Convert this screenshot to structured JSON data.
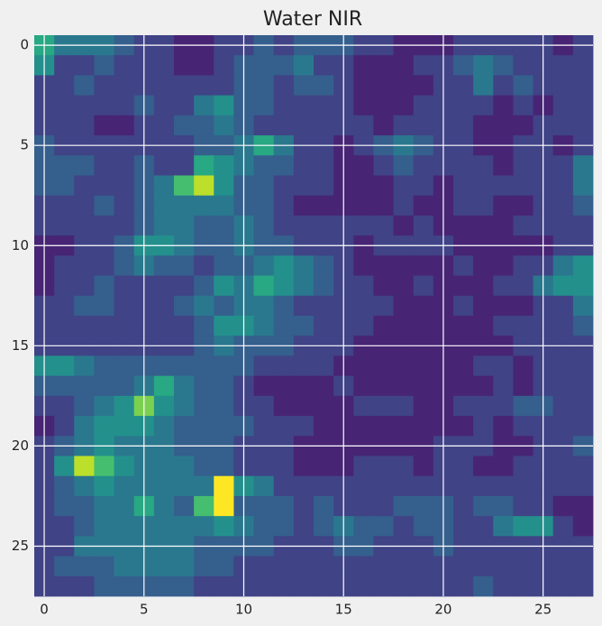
{
  "chart_data": {
    "type": "heatmap",
    "title": "Water NIR",
    "colormap": "viridis",
    "clim": [
      0,
      10
    ],
    "grid": true,
    "xlim": [
      -0.5,
      27.5
    ],
    "ylim": [
      27.5,
      -0.5
    ],
    "xticks": [
      0,
      5,
      10,
      15,
      20,
      25
    ],
    "yticks": [
      0,
      5,
      10,
      15,
      20,
      25
    ],
    "values": [
      [
        6,
        4,
        4,
        4,
        3,
        2,
        2,
        1,
        1,
        2,
        2,
        3,
        2,
        3,
        3,
        3,
        2,
        2,
        1,
        1,
        1,
        2,
        2,
        2,
        2,
        2,
        1,
        2
      ],
      [
        5,
        2,
        2,
        3,
        2,
        2,
        2,
        1,
        1,
        2,
        3,
        3,
        3,
        4,
        2,
        2,
        1,
        1,
        1,
        2,
        2,
        3,
        4,
        3,
        2,
        2,
        2,
        2
      ],
      [
        2,
        2,
        3,
        2,
        2,
        2,
        2,
        2,
        2,
        2,
        3,
        3,
        2,
        3,
        3,
        2,
        1,
        1,
        1,
        1,
        2,
        2,
        4,
        2,
        3,
        2,
        2,
        2
      ],
      [
        2,
        2,
        2,
        2,
        2,
        3,
        2,
        2,
        4,
        5,
        3,
        3,
        2,
        2,
        2,
        2,
        1,
        1,
        1,
        2,
        2,
        2,
        2,
        1,
        2,
        1,
        2,
        2
      ],
      [
        2,
        2,
        2,
        1,
        1,
        2,
        2,
        3,
        3,
        4,
        3,
        2,
        2,
        2,
        2,
        2,
        2,
        1,
        2,
        2,
        2,
        2,
        1,
        1,
        1,
        2,
        2,
        2
      ],
      [
        3,
        2,
        2,
        2,
        2,
        2,
        2,
        2,
        3,
        3,
        4,
        6,
        4,
        2,
        2,
        1,
        2,
        3,
        4,
        3,
        2,
        2,
        1,
        1,
        2,
        2,
        1,
        2
      ],
      [
        3,
        3,
        3,
        2,
        2,
        3,
        2,
        2,
        6,
        5,
        4,
        3,
        3,
        2,
        2,
        1,
        1,
        2,
        3,
        2,
        2,
        2,
        2,
        1,
        2,
        2,
        2,
        4
      ],
      [
        3,
        3,
        2,
        2,
        2,
        3,
        4,
        7,
        9,
        5,
        3,
        3,
        2,
        2,
        2,
        1,
        1,
        1,
        2,
        2,
        1,
        2,
        2,
        2,
        2,
        2,
        2,
        4
      ],
      [
        2,
        2,
        2,
        3,
        2,
        3,
        4,
        4,
        4,
        4,
        3,
        3,
        2,
        1,
        1,
        1,
        1,
        1,
        2,
        1,
        1,
        2,
        2,
        1,
        1,
        2,
        2,
        3
      ],
      [
        2,
        2,
        2,
        2,
        2,
        3,
        4,
        4,
        3,
        3,
        4,
        3,
        2,
        2,
        2,
        2,
        2,
        2,
        1,
        2,
        1,
        1,
        1,
        1,
        2,
        2,
        2,
        2
      ],
      [
        1,
        1,
        2,
        2,
        3,
        5,
        5,
        4,
        3,
        3,
        4,
        3,
        3,
        2,
        2,
        2,
        1,
        2,
        2,
        2,
        2,
        1,
        1,
        1,
        1,
        1,
        2,
        2
      ],
      [
        1,
        2,
        2,
        2,
        3,
        4,
        3,
        3,
        2,
        3,
        3,
        4,
        5,
        4,
        3,
        2,
        1,
        1,
        1,
        1,
        1,
        2,
        1,
        1,
        2,
        2,
        4,
        5
      ],
      [
        1,
        2,
        2,
        3,
        2,
        2,
        2,
        2,
        3,
        5,
        4,
        6,
        5,
        4,
        3,
        2,
        2,
        1,
        1,
        2,
        1,
        1,
        1,
        2,
        2,
        4,
        5,
        5
      ],
      [
        2,
        2,
        3,
        3,
        2,
        2,
        2,
        3,
        4,
        3,
        4,
        4,
        3,
        2,
        2,
        2,
        2,
        2,
        1,
        1,
        1,
        2,
        1,
        1,
        1,
        2,
        2,
        4
      ],
      [
        2,
        2,
        2,
        2,
        2,
        2,
        2,
        2,
        3,
        5,
        5,
        4,
        3,
        3,
        2,
        2,
        2,
        1,
        1,
        1,
        1,
        1,
        1,
        2,
        2,
        2,
        2,
        3
      ],
      [
        2,
        2,
        2,
        2,
        2,
        2,
        2,
        2,
        3,
        4,
        3,
        3,
        3,
        2,
        2,
        2,
        1,
        1,
        1,
        1,
        1,
        1,
        1,
        1,
        2,
        2,
        2,
        2
      ],
      [
        5,
        5,
        4,
        3,
        3,
        3,
        3,
        3,
        3,
        3,
        3,
        2,
        2,
        2,
        2,
        1,
        1,
        1,
        1,
        1,
        1,
        1,
        2,
        2,
        1,
        2,
        2,
        2
      ],
      [
        3,
        3,
        3,
        3,
        3,
        4,
        6,
        4,
        3,
        3,
        2,
        1,
        1,
        1,
        1,
        2,
        1,
        1,
        1,
        1,
        1,
        1,
        1,
        2,
        1,
        2,
        2,
        2
      ],
      [
        2,
        2,
        3,
        4,
        5,
        8,
        5,
        4,
        3,
        3,
        2,
        2,
        1,
        1,
        1,
        1,
        2,
        2,
        2,
        1,
        1,
        2,
        2,
        2,
        3,
        3,
        2,
        2
      ],
      [
        1,
        2,
        4,
        5,
        5,
        5,
        4,
        3,
        3,
        3,
        3,
        2,
        2,
        2,
        1,
        1,
        1,
        1,
        1,
        1,
        1,
        1,
        2,
        1,
        2,
        2,
        2,
        2
      ],
      [
        2,
        3,
        4,
        5,
        4,
        4,
        4,
        3,
        3,
        3,
        2,
        2,
        2,
        1,
        1,
        1,
        1,
        1,
        1,
        1,
        2,
        2,
        2,
        1,
        1,
        2,
        2,
        3
      ],
      [
        2,
        5,
        9,
        7,
        5,
        4,
        4,
        4,
        3,
        3,
        2,
        2,
        2,
        1,
        1,
        1,
        2,
        2,
        2,
        1,
        2,
        2,
        1,
        1,
        2,
        2,
        2,
        2
      ],
      [
        2,
        3,
        4,
        5,
        4,
        4,
        4,
        4,
        4,
        10,
        5,
        4,
        2,
        2,
        2,
        2,
        2,
        2,
        2,
        2,
        2,
        2,
        2,
        2,
        2,
        2,
        2,
        2
      ],
      [
        2,
        3,
        3,
        4,
        4,
        6,
        4,
        3,
        7,
        10,
        3,
        3,
        3,
        2,
        3,
        2,
        2,
        2,
        3,
        3,
        3,
        2,
        3,
        3,
        2,
        2,
        1,
        1
      ],
      [
        2,
        2,
        3,
        4,
        4,
        4,
        4,
        4,
        4,
        5,
        4,
        3,
        3,
        2,
        3,
        4,
        3,
        3,
        2,
        3,
        3,
        2,
        2,
        4,
        5,
        5,
        2,
        1
      ],
      [
        2,
        2,
        4,
        4,
        4,
        4,
        4,
        4,
        3,
        3,
        3,
        3,
        2,
        2,
        2,
        3,
        3,
        2,
        2,
        2,
        3,
        2,
        2,
        2,
        2,
        2,
        2,
        2
      ],
      [
        2,
        3,
        3,
        3,
        4,
        4,
        4,
        4,
        3,
        3,
        2,
        2,
        2,
        2,
        2,
        2,
        2,
        2,
        2,
        2,
        2,
        2,
        2,
        2,
        2,
        2,
        2,
        2
      ],
      [
        2,
        2,
        2,
        3,
        3,
        3,
        3,
        3,
        2,
        2,
        2,
        2,
        2,
        2,
        2,
        2,
        2,
        2,
        2,
        2,
        2,
        2,
        3,
        2,
        2,
        2,
        2,
        2
      ]
    ]
  }
}
